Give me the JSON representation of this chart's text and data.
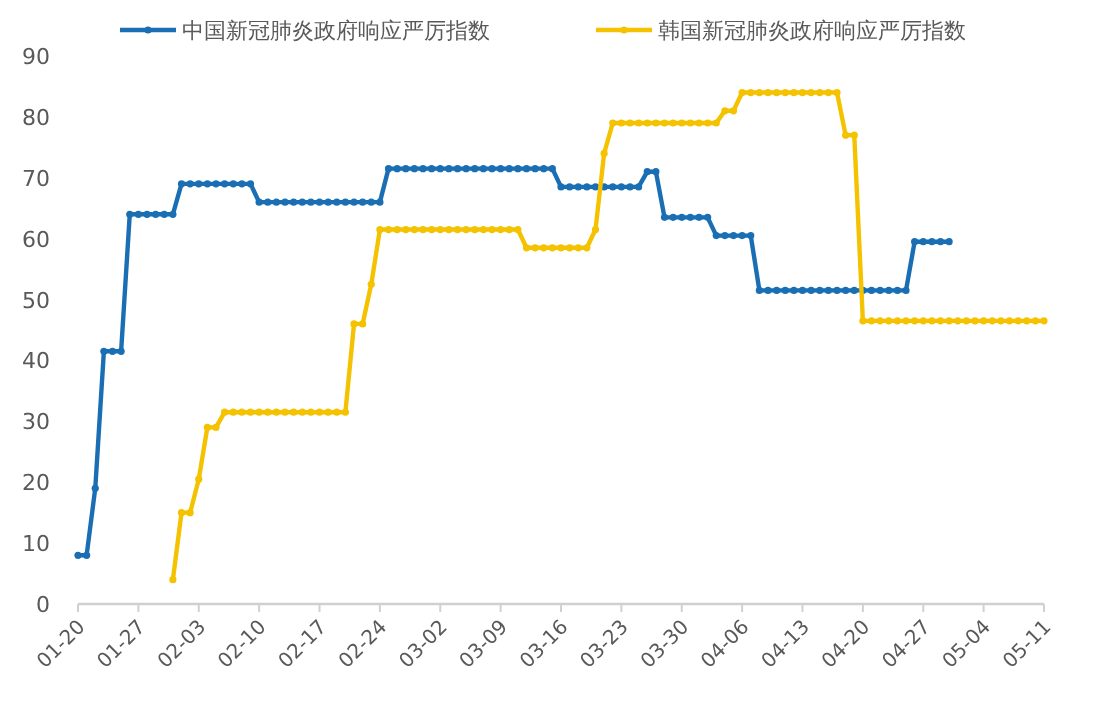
{
  "chart_data": {
    "type": "line",
    "marker": "circle",
    "legend": "top",
    "line_style": "solid",
    "x": [
      "--01-20",
      "--01-21",
      "--01-22",
      "--01-23",
      "--01-24",
      "--01-25",
      "--01-26",
      "--01-27",
      "--01-28",
      "--01-29",
      "--01-30",
      "--01-31",
      "--02-01",
      "--02-02",
      "--02-03",
      "--02-04",
      "--02-05",
      "--02-06",
      "--02-07",
      "--02-08",
      "--02-09",
      "--02-10",
      "--02-11",
      "--02-12",
      "--02-13",
      "--02-14",
      "--02-15",
      "--02-16",
      "--02-17",
      "--02-18",
      "--02-19",
      "--02-20",
      "--02-21",
      "--02-22",
      "--02-23",
      "--02-24",
      "--02-25",
      "--02-26",
      "--02-27",
      "--02-28",
      "--02-29",
      "--03-01",
      "--03-02",
      "--03-03",
      "--03-04",
      "--03-05",
      "--03-06",
      "--03-07",
      "--03-08",
      "--03-09",
      "--03-10",
      "--03-11",
      "--03-12",
      "--03-13",
      "--03-14",
      "--03-15",
      "--03-16",
      "--03-17",
      "--03-18",
      "--03-19",
      "--03-20",
      "--03-21",
      "--03-22",
      "--03-23",
      "--03-24",
      "--03-25",
      "--03-26",
      "--03-27",
      "--03-28",
      "--03-29",
      "--03-30",
      "--03-31",
      "--04-01",
      "--04-02",
      "--04-03",
      "--04-04",
      "--04-05",
      "--04-06",
      "--04-07",
      "--04-08",
      "--04-09",
      "--04-10",
      "--04-11",
      "--04-12",
      "--04-13",
      "--04-14",
      "--04-15",
      "--04-16",
      "--04-17",
      "--04-18",
      "--04-19",
      "--04-20",
      "--04-21",
      "--04-22",
      "--04-23",
      "--04-24",
      "--04-25",
      "--04-26",
      "--04-27",
      "--04-28",
      "--04-29",
      "--04-30",
      "--05-01",
      "--05-02",
      "--05-03",
      "--05-04",
      "--05-05",
      "--05-06",
      "--05-07",
      "--05-08",
      "--05-09",
      "--05-10",
      "--05-11"
    ],
    "series": [
      {
        "name": "中国新冠肺炎政府响应严厉指数",
        "color": "#1a6fb4",
        "values": [
          8,
          8,
          19,
          41.5,
          41.5,
          41.5,
          64,
          64,
          64,
          64,
          64,
          64,
          69,
          69,
          69,
          69,
          69,
          69,
          69,
          69,
          69,
          66,
          66,
          66,
          66,
          66,
          66,
          66,
          66,
          66,
          66,
          66,
          66,
          66,
          66,
          66,
          71.5,
          71.5,
          71.5,
          71.5,
          71.5,
          71.5,
          71.5,
          71.5,
          71.5,
          71.5,
          71.5,
          71.5,
          71.5,
          71.5,
          71.5,
          71.5,
          71.5,
          71.5,
          71.5,
          71.5,
          68.5,
          68.5,
          68.5,
          68.5,
          68.5,
          68.5,
          68.5,
          68.5,
          68.5,
          68.5,
          71,
          71,
          63.5,
          63.5,
          63.5,
          63.5,
          63.5,
          63.5,
          60.5,
          60.5,
          60.5,
          60.5,
          60.5,
          51.5,
          51.5,
          51.5,
          51.5,
          51.5,
          51.5,
          51.5,
          51.5,
          51.5,
          51.5,
          51.5,
          51.5,
          51.5,
          51.5,
          51.5,
          51.5,
          51.5,
          51.5,
          59.5,
          59.5,
          59.5,
          59.5,
          59.5,
          null,
          null,
          null,
          null,
          null,
          null,
          null,
          null,
          null,
          null,
          null
        ]
      },
      {
        "name": "韩国新冠肺炎政府响应严厉指数",
        "color": "#f5c200",
        "values": [
          null,
          null,
          null,
          null,
          null,
          null,
          null,
          null,
          null,
          null,
          null,
          4,
          15,
          15,
          20.5,
          29,
          29,
          31.5,
          31.5,
          31.5,
          31.5,
          31.5,
          31.5,
          31.5,
          31.5,
          31.5,
          31.5,
          31.5,
          31.5,
          31.5,
          31.5,
          31.5,
          46,
          46,
          52.5,
          61.5,
          61.5,
          61.5,
          61.5,
          61.5,
          61.5,
          61.5,
          61.5,
          61.5,
          61.5,
          61.5,
          61.5,
          61.5,
          61.5,
          61.5,
          61.5,
          61.5,
          58.5,
          58.5,
          58.5,
          58.5,
          58.5,
          58.5,
          58.5,
          58.5,
          61.5,
          74,
          79,
          79,
          79,
          79,
          79,
          79,
          79,
          79,
          79,
          79,
          79,
          79,
          79,
          81,
          81,
          84,
          84,
          84,
          84,
          84,
          84,
          84,
          84,
          84,
          84,
          84,
          84,
          77,
          77,
          46.5,
          46.5,
          46.5,
          46.5,
          46.5,
          46.5,
          46.5,
          46.5,
          46.5,
          46.5,
          46.5,
          46.5,
          46.5,
          46.5,
          46.5,
          46.5,
          46.5,
          46.5,
          46.5,
          46.5,
          46.5,
          46.5
        ]
      }
    ],
    "xlim": [
      "--01-20",
      "--05-11"
    ],
    "xticks": [
      {
        "value": "--01-20",
        "label": "01-20"
      },
      {
        "value": "--01-27",
        "label": "01-27"
      },
      {
        "value": "--02-03",
        "label": "02-03"
      },
      {
        "value": "--02-10",
        "label": "02-10"
      },
      {
        "value": "--02-17",
        "label": "02-17"
      },
      {
        "value": "--02-24",
        "label": "02-24"
      },
      {
        "value": "--03-02",
        "label": "03-02"
      },
      {
        "value": "--03-09",
        "label": "03-09"
      },
      {
        "value": "--03-16",
        "label": "03-16"
      },
      {
        "value": "--03-23",
        "label": "03-23"
      },
      {
        "value": "--03-30",
        "label": "03-30"
      },
      {
        "value": "--04-06",
        "label": "04-06"
      },
      {
        "value": "--04-13",
        "label": "04-13"
      },
      {
        "value": "--04-20",
        "label": "04-20"
      },
      {
        "value": "--04-27",
        "label": "04-27"
      },
      {
        "value": "--05-04",
        "label": "05-04"
      },
      {
        "value": "--05-11",
        "label": "05-11"
      }
    ],
    "ylim": [
      0,
      90
    ],
    "yticks": [
      0,
      10,
      20,
      30,
      40,
      50,
      60,
      70,
      80,
      90
    ]
  }
}
